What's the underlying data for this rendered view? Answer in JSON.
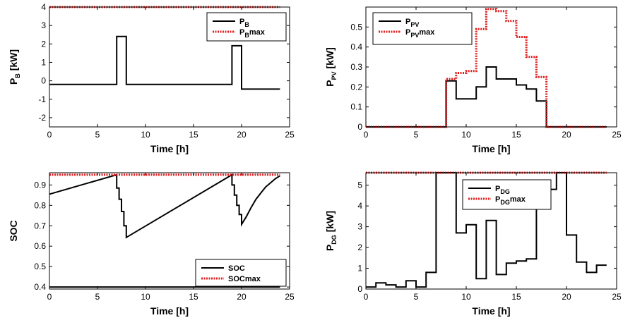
{
  "colors": {
    "actual": "#000000",
    "limit": "#e02020"
  },
  "chart_data": [
    {
      "id": "pb",
      "type": "line",
      "xlabel": "Time [h]",
      "ylabel_main": "P",
      "ylabel_sub": "B",
      "ylabel_suffix": " [kW]",
      "xlim": [
        0,
        25
      ],
      "ylim": [
        -2.5,
        4
      ],
      "xticks": [
        0,
        5,
        10,
        15,
        20,
        25
      ],
      "yticks": [
        -2,
        -1,
        0,
        1,
        2,
        3,
        4
      ],
      "legend_position": "top-right",
      "series": [
        {
          "legend_main": "P",
          "legend_sub": "B",
          "legend_suffix": "",
          "style": "solid",
          "color_key": "actual",
          "points": [
            [
              0,
              -0.2
            ],
            [
              7,
              -0.2
            ],
            [
              7,
              2.4
            ],
            [
              8,
              2.4
            ],
            [
              8,
              -0.2
            ],
            [
              19,
              -0.2
            ],
            [
              19,
              1.9
            ],
            [
              20,
              1.9
            ],
            [
              20,
              -0.45
            ],
            [
              24,
              -0.45
            ]
          ]
        },
        {
          "legend_main": "P",
          "legend_sub": "B",
          "legend_suffix": "max",
          "style": "dotted",
          "color_key": "limit",
          "points": [
            [
              0,
              4
            ],
            [
              24,
              4
            ]
          ]
        }
      ]
    },
    {
      "id": "ppv",
      "type": "line",
      "xlabel": "Time [h]",
      "ylabel_main": "P",
      "ylabel_sub": "PV",
      "ylabel_suffix": " [kW]",
      "xlim": [
        0,
        25
      ],
      "ylim": [
        0,
        0.6
      ],
      "xticks": [
        0,
        5,
        10,
        15,
        20,
        25
      ],
      "yticks": [
        0,
        0.1,
        0.2,
        0.3,
        0.4,
        0.5
      ],
      "legend_position": "top-left",
      "series": [
        {
          "legend_main": "P",
          "legend_sub": "PV",
          "legend_suffix": "",
          "style": "solid",
          "color_key": "actual",
          "points": [
            [
              0,
              0
            ],
            [
              8,
              0
            ],
            [
              8,
              0.23
            ],
            [
              9,
              0.23
            ],
            [
              9,
              0.14
            ],
            [
              11,
              0.14
            ],
            [
              11,
              0.2
            ],
            [
              12,
              0.2
            ],
            [
              12,
              0.3
            ],
            [
              13,
              0.3
            ],
            [
              13,
              0.24
            ],
            [
              15,
              0.24
            ],
            [
              15,
              0.21
            ],
            [
              16,
              0.21
            ],
            [
              16,
              0.19
            ],
            [
              17,
              0.19
            ],
            [
              17,
              0.13
            ],
            [
              18,
              0.13
            ],
            [
              18,
              0
            ],
            [
              24,
              0
            ]
          ]
        },
        {
          "legend_main": "P",
          "legend_sub": "PV",
          "legend_suffix": "max",
          "style": "dotted",
          "color_key": "limit",
          "points": [
            [
              0,
              0
            ],
            [
              8,
              0
            ],
            [
              8,
              0.24
            ],
            [
              9,
              0.24
            ],
            [
              9,
              0.27
            ],
            [
              10,
              0.27
            ],
            [
              10,
              0.28
            ],
            [
              11,
              0.28
            ],
            [
              11,
              0.49
            ],
            [
              12,
              0.49
            ],
            [
              12,
              0.59
            ],
            [
              13,
              0.59
            ],
            [
              13,
              0.58
            ],
            [
              14,
              0.58
            ],
            [
              14,
              0.53
            ],
            [
              15,
              0.53
            ],
            [
              15,
              0.45
            ],
            [
              16,
              0.45
            ],
            [
              16,
              0.35
            ],
            [
              17,
              0.35
            ],
            [
              17,
              0.25
            ],
            [
              18,
              0.25
            ],
            [
              18,
              0
            ],
            [
              24,
              0
            ]
          ]
        }
      ]
    },
    {
      "id": "soc",
      "type": "line",
      "xlabel": "Time [h]",
      "ylabel_main": "SOC",
      "ylabel_sub": "",
      "ylabel_suffix": "",
      "xlim": [
        0,
        25
      ],
      "ylim": [
        0.39,
        0.96
      ],
      "xticks": [
        0,
        5,
        10,
        15,
        20,
        25
      ],
      "yticks": [
        0.4,
        0.5,
        0.6,
        0.7,
        0.8,
        0.9
      ],
      "legend_position": "bottom-right",
      "series": [
        {
          "legend_main": "SOC",
          "legend_sub": "",
          "legend_suffix": "",
          "style": "solid",
          "color_key": "actual",
          "points": [
            [
              0,
              0.855
            ],
            [
              7,
              0.95
            ],
            [
              7,
              0.885
            ],
            [
              7.25,
              0.885
            ],
            [
              7.25,
              0.83
            ],
            [
              7.5,
              0.83
            ],
            [
              7.5,
              0.77
            ],
            [
              7.75,
              0.77
            ],
            [
              7.75,
              0.7
            ],
            [
              8,
              0.7
            ],
            [
              8,
              0.643
            ],
            [
              19,
              0.95
            ],
            [
              19,
              0.9
            ],
            [
              19.25,
              0.9
            ],
            [
              19.25,
              0.85
            ],
            [
              19.5,
              0.85
            ],
            [
              19.5,
              0.8
            ],
            [
              19.75,
              0.8
            ],
            [
              19.75,
              0.755
            ],
            [
              20,
              0.755
            ],
            [
              20,
              0.707
            ],
            [
              20.5,
              0.745
            ],
            [
              21,
              0.79
            ],
            [
              21.5,
              0.83
            ],
            [
              22,
              0.86
            ],
            [
              22.5,
              0.89
            ],
            [
              23,
              0.91
            ],
            [
              23.5,
              0.93
            ],
            [
              24,
              0.945
            ]
          ]
        },
        {
          "legend_main": "SOC",
          "legend_sub": "",
          "legend_suffix": "max",
          "style": "dotted",
          "color_key": "limit",
          "points": [
            [
              0,
              0.95
            ],
            [
              24,
              0.95
            ]
          ]
        },
        {
          "legend_main": "",
          "legend_sub": "",
          "legend_suffix": "",
          "style": "solid",
          "color_key": "actual",
          "points": [
            [
              0,
              0.4
            ],
            [
              24,
              0.4
            ]
          ]
        }
      ]
    },
    {
      "id": "pdg",
      "type": "line",
      "xlabel": "Time [h]",
      "ylabel_main": "P",
      "ylabel_sub": "DG",
      "ylabel_suffix": " [kW]",
      "xlim": [
        0,
        25
      ],
      "ylim": [
        0,
        5.6
      ],
      "xticks": [
        0,
        5,
        10,
        15,
        20,
        25
      ],
      "yticks": [
        0,
        1,
        2,
        3,
        4,
        5
      ],
      "legend_position": "top-center",
      "series": [
        {
          "legend_main": "P",
          "legend_sub": "DG",
          "legend_suffix": "",
          "style": "solid",
          "color_key": "actual",
          "points": [
            [
              0,
              0.1
            ],
            [
              1,
              0.1
            ],
            [
              1,
              0.3
            ],
            [
              2,
              0.3
            ],
            [
              2,
              0.2
            ],
            [
              3,
              0.2
            ],
            [
              3,
              0.1
            ],
            [
              4,
              0.1
            ],
            [
              4,
              0.4
            ],
            [
              5,
              0.4
            ],
            [
              5,
              0.1
            ],
            [
              6,
              0.1
            ],
            [
              6,
              0.8
            ],
            [
              7,
              0.8
            ],
            [
              7,
              5.6
            ],
            [
              9,
              5.6
            ],
            [
              9,
              2.7
            ],
            [
              10,
              2.7
            ],
            [
              10,
              3.1
            ],
            [
              11,
              3.1
            ],
            [
              11,
              0.5
            ],
            [
              12,
              0.5
            ],
            [
              12,
              3.3
            ],
            [
              13,
              3.3
            ],
            [
              13,
              0.7
            ],
            [
              14,
              0.7
            ],
            [
              14,
              1.25
            ],
            [
              15,
              1.25
            ],
            [
              15,
              1.35
            ],
            [
              16,
              1.35
            ],
            [
              16,
              1.45
            ],
            [
              17,
              1.45
            ],
            [
              17,
              3.9
            ],
            [
              18,
              3.9
            ],
            [
              18,
              4.8
            ],
            [
              19,
              4.8
            ],
            [
              19,
              5.6
            ],
            [
              20,
              5.6
            ],
            [
              20,
              2.6
            ],
            [
              21,
              2.6
            ],
            [
              21,
              1.3
            ],
            [
              22,
              1.3
            ],
            [
              22,
              0.8
            ],
            [
              23,
              0.8
            ],
            [
              23,
              1.15
            ],
            [
              24,
              1.15
            ]
          ]
        },
        {
          "legend_main": "P",
          "legend_sub": "DG",
          "legend_suffix": "max",
          "style": "dotted",
          "color_key": "limit",
          "points": [
            [
              0,
              5.6
            ],
            [
              24,
              5.6
            ]
          ]
        }
      ]
    }
  ]
}
